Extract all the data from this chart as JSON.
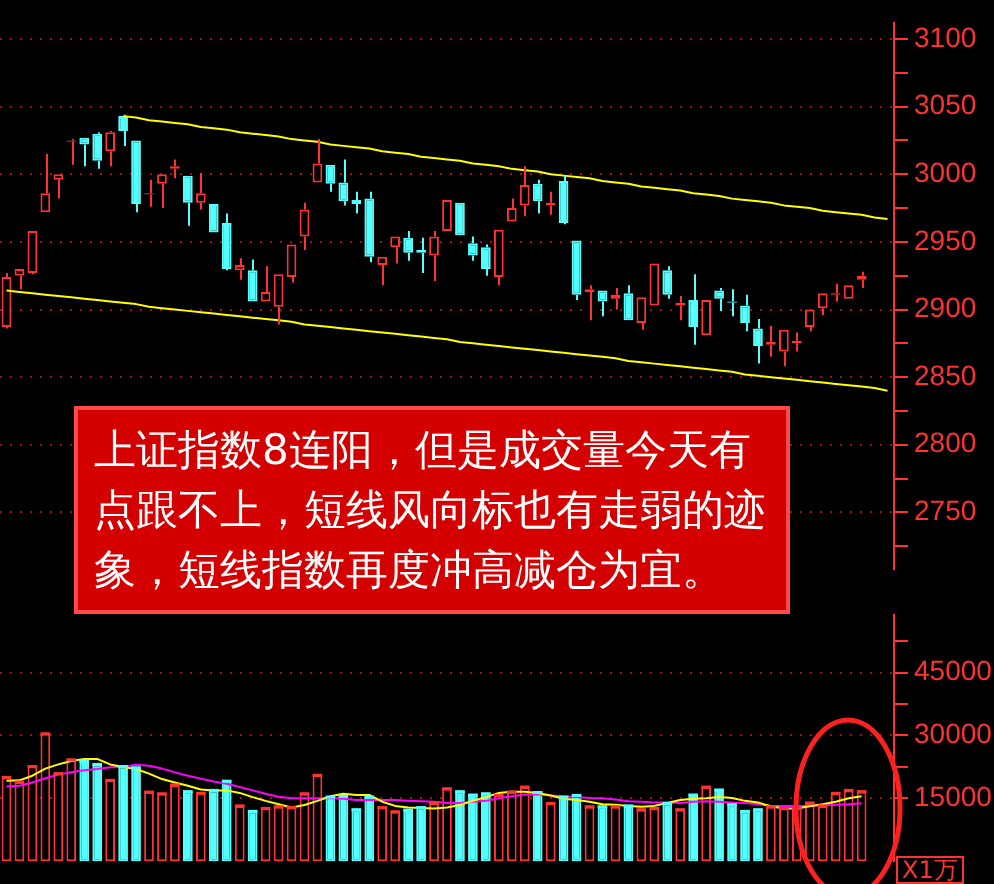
{
  "chart_data": [
    {
      "type": "candlestick",
      "categories": [
        null,
        null,
        null,
        null,
        null,
        null,
        null,
        null,
        null,
        null,
        null,
        null,
        null,
        null,
        null,
        null,
        null,
        null,
        null,
        null,
        null,
        null,
        null,
        null,
        null,
        null,
        null,
        null,
        null,
        null,
        null,
        null,
        null,
        null,
        null,
        null,
        null,
        null,
        null,
        null,
        null,
        null,
        null,
        null,
        null,
        null,
        null,
        null,
        null,
        null,
        null,
        null,
        null,
        null,
        null,
        null,
        null,
        null,
        null,
        null,
        null,
        null,
        null,
        null,
        null,
        null,
        null,
        null,
        null
      ],
      "ohlc": [
        [
          2887,
          2927,
          2886,
          2924
        ],
        [
          2925,
          2930,
          2915,
          2930
        ],
        [
          2927,
          2958,
          2926,
          2958
        ],
        [
          2972,
          3015,
          2972,
          2986
        ],
        [
          2996,
          3000,
          2982,
          3000
        ],
        [
          3024,
          3026,
          3007,
          3025
        ],
        [
          3027,
          3027,
          3006,
          3022
        ],
        [
          3030,
          3031,
          3004,
          3010
        ],
        [
          3017,
          3032,
          3006,
          3031
        ],
        [
          3043,
          3044,
          3021,
          3032
        ],
        [
          3025,
          3025,
          2972,
          2978
        ],
        [
          2985,
          2996,
          2976,
          2986
        ],
        [
          2993,
          3000,
          2975,
          3000
        ],
        [
          3004,
          3011,
          2997,
          3006
        ],
        [
          2999,
          2999,
          2962,
          2979
        ],
        [
          2979,
          3001,
          2974,
          2986
        ],
        [
          2978,
          2978,
          2957,
          2957
        ],
        [
          2964,
          2971,
          2929,
          2930
        ],
        [
          2929,
          2938,
          2922,
          2933
        ],
        [
          2929,
          2937,
          2906,
          2906
        ],
        [
          2906,
          2932,
          2906,
          2913
        ],
        [
          2902,
          2926,
          2889,
          2926
        ],
        [
          2924,
          2948,
          2920,
          2948
        ],
        [
          2954,
          2979,
          2944,
          2974
        ],
        [
          2994,
          3026,
          2994,
          3008
        ],
        [
          3007,
          3007,
          2987,
          2993
        ],
        [
          2994,
          3011,
          2977,
          2980
        ],
        [
          2981,
          2987,
          2971,
          2978
        ],
        [
          2982,
          2987,
          2935,
          2939
        ],
        [
          2933,
          2939,
          2918,
          2939
        ],
        [
          2946,
          2954,
          2934,
          2954
        ],
        [
          2953,
          2958,
          2936,
          2942
        ],
        [
          2944,
          2953,
          2927,
          2942
        ],
        [
          2940,
          2958,
          2921,
          2954
        ],
        [
          2958,
          2981,
          2958,
          2981
        ],
        [
          2979,
          2979,
          2955,
          2955
        ],
        [
          2949,
          2954,
          2936,
          2940
        ],
        [
          2946,
          2948,
          2925,
          2930
        ],
        [
          2924,
          2959,
          2918,
          2959
        ],
        [
          2965,
          2982,
          2965,
          2975
        ],
        [
          2977,
          3006,
          2969,
          2992
        ],
        [
          2993,
          2996,
          2971,
          2980
        ],
        [
          2977,
          2987,
          2970,
          2979
        ],
        [
          2995,
          2999,
          2963,
          2964
        ],
        [
          2951,
          2951,
          2907,
          2911
        ],
        [
          2913,
          2918,
          2892,
          2915
        ],
        [
          2914,
          2914,
          2895,
          2906
        ],
        [
          2908,
          2916,
          2900,
          2911
        ],
        [
          2912,
          2918,
          2892,
          2892
        ],
        [
          2890,
          2909,
          2885,
          2909
        ],
        [
          2903,
          2934,
          2903,
          2934
        ],
        [
          2929,
          2932,
          2908,
          2911
        ],
        [
          2903,
          2910,
          2892,
          2905
        ],
        [
          2907,
          2926,
          2874,
          2887
        ],
        [
          2881,
          2907,
          2881,
          2907
        ],
        [
          2914,
          2916,
          2899,
          2908
        ],
        [
          2906,
          2915,
          2895,
          2905
        ],
        [
          2903,
          2911,
          2884,
          2890
        ],
        [
          2886,
          2893,
          2860,
          2873
        ],
        [
          2874,
          2888,
          2865,
          2876
        ],
        [
          2869,
          2885,
          2858,
          2885
        ],
        [
          2875,
          2883,
          2869,
          2877
        ],
        [
          2887,
          2900,
          2884,
          2900
        ],
        [
          2901,
          2912,
          2896,
          2912
        ],
        [
          2911,
          2919,
          2906,
          2912
        ],
        [
          2908,
          2918,
          2908,
          2918
        ],
        [
          2922,
          2928,
          2916,
          2925
        ],
        null,
        null
      ],
      "colors": [
        "#ff3232",
        "#ff3232",
        "#ff3232",
        "#ff3232",
        "#ff3232",
        "#ff3232",
        "#54ffff",
        "#54ffff",
        "#ff3232",
        "#54ffff",
        "#54ffff",
        "#ff3232",
        "#ff3232",
        "#ff3232",
        "#54ffff",
        "#ff3232",
        "#54ffff",
        "#54ffff",
        "#ff3232",
        "#54ffff",
        "#ff3232",
        "#ff3232",
        "#ff3232",
        "#ff3232",
        "#ff3232",
        "#54ffff",
        "#54ffff",
        "#54ffff",
        "#54ffff",
        "#ff3232",
        "#ff3232",
        "#54ffff",
        "#54ffff",
        "#ff3232",
        "#ff3232",
        "#54ffff",
        "#54ffff",
        "#54ffff",
        "#ff3232",
        "#ff3232",
        "#ff3232",
        "#54ffff",
        "#ff3232",
        "#54ffff",
        "#54ffff",
        "#ff3232",
        "#54ffff",
        "#ff3232",
        "#54ffff",
        "#ff3232",
        "#ff3232",
        "#54ffff",
        "#ff3232",
        "#54ffff",
        "#ff3232",
        "#54ffff",
        "#54ffff",
        "#54ffff",
        "#54ffff",
        "#ff3232",
        "#ff3232",
        "#ff3232",
        "#ff3232",
        "#ff3232",
        "#ff3232",
        "#ff3232",
        "#ff3232",
        null,
        null
      ],
      "series": [
        {
          "type": "line",
          "color": "#ffff00",
          "values": [
            null,
            null,
            null,
            null,
            null,
            null,
            null,
            null,
            null,
            3043,
            3042,
            3040,
            3039,
            3038,
            3037,
            3035,
            3034,
            3033,
            3031,
            3030,
            3029,
            3028,
            3026,
            3025,
            3024,
            3022,
            3021,
            3020,
            3019,
            3017,
            3016,
            3015,
            3013,
            3012,
            3011,
            3010,
            3008,
            3007,
            3006,
            3004,
            3003,
            3002,
            3000,
            2999,
            2998,
            2997,
            2995,
            2994,
            2993,
            2991,
            2990,
            2989,
            2988,
            2986,
            2985,
            2984,
            2982,
            2981,
            2980,
            2979,
            2977,
            2976,
            2975,
            2973,
            2972,
            2971,
            2970,
            2968,
            2967
          ]
        },
        {
          "type": "line",
          "color": "#ffff00",
          "values": [
            2914,
            2913,
            2912,
            2911,
            2910,
            2909,
            2908,
            2907,
            2906,
            2905,
            2904,
            2902,
            2901,
            2900,
            2899,
            2898,
            2897,
            2896,
            2895,
            2894,
            2893,
            2892,
            2891,
            2889,
            2888,
            2887,
            2886,
            2885,
            2884,
            2883,
            2882,
            2881,
            2880,
            2879,
            2878,
            2876,
            2875,
            2874,
            2873,
            2872,
            2871,
            2870,
            2869,
            2868,
            2867,
            2866,
            2865,
            2864,
            2862,
            2861,
            2860,
            2859,
            2858,
            2857,
            2856,
            2855,
            2854,
            2852,
            2851,
            2850,
            2849,
            2848,
            2847,
            2846,
            2845,
            2844,
            2843,
            2842,
            2840
          ]
        }
      ],
      "ylim": [
        2708,
        3112
      ],
      "yticks": [
        {
          "value": 2725,
          "label": null
        },
        2750,
        {
          "value": 2775,
          "label": null
        },
        2800,
        {
          "value": 2825,
          "label": null
        },
        2850,
        {
          "value": 2875,
          "label": null
        },
        2900,
        {
          "value": 2925,
          "label": null
        },
        2950,
        {
          "value": 2975,
          "label": null
        },
        3000,
        {
          "value": 3025,
          "label": null
        },
        3050,
        {
          "value": 3075,
          "label": null
        },
        3100
      ],
      "grid": "y",
      "tick_labels": "y",
      "annotations": [
        "上证指数8连阳，但是成交量今天有点跟不上，短线风向标也有走弱的迹象，短线指数再度冲高减仓为宜。"
      ]
    },
    {
      "type": "bar",
      "categories": [
        null,
        null,
        null,
        null,
        null,
        null,
        null,
        null,
        null,
        null,
        null,
        null,
        null,
        null,
        null,
        null,
        null,
        null,
        null,
        null,
        null,
        null,
        null,
        null,
        null,
        null,
        null,
        null,
        null,
        null,
        null,
        null,
        null,
        null,
        null,
        null,
        null,
        null,
        null,
        null,
        null,
        null,
        null,
        null,
        null,
        null,
        null,
        null,
        null,
        null,
        null,
        null,
        null,
        null,
        null,
        null,
        null,
        null,
        null,
        null,
        null,
        null,
        null,
        null,
        null,
        null,
        null,
        null,
        null
      ],
      "series": [
        {
          "colors": [
            "#ff3232",
            "#ff3232",
            "#ff3232",
            "#ff3232",
            "#ff3232",
            "#ff3232",
            "#54ffff",
            "#54ffff",
            "#ff3232",
            "#54ffff",
            "#54ffff",
            "#ff3232",
            "#ff3232",
            "#ff3232",
            "#54ffff",
            "#ff3232",
            "#54ffff",
            "#54ffff",
            "#ff3232",
            "#54ffff",
            "#ff3232",
            "#ff3232",
            "#ff3232",
            "#ff3232",
            "#ff3232",
            "#54ffff",
            "#54ffff",
            "#54ffff",
            "#54ffff",
            "#ff3232",
            "#ff3232",
            "#54ffff",
            "#54ffff",
            "#ff3232",
            "#ff3232",
            "#54ffff",
            "#54ffff",
            "#54ffff",
            "#ff3232",
            "#ff3232",
            "#ff3232",
            "#54ffff",
            "#ff3232",
            "#54ffff",
            "#54ffff",
            "#ff3232",
            "#54ffff",
            "#ff3232",
            "#54ffff",
            "#ff3232",
            "#ff3232",
            "#54ffff",
            "#ff3232",
            "#54ffff",
            "#ff3232",
            "#54ffff",
            "#54ffff",
            "#54ffff",
            "#54ffff",
            "#ff3232",
            "#ff3232",
            "#ff3232",
            "#ff3232",
            "#ff3232",
            "#ff3232",
            "#ff3232",
            "#ff3232",
            null,
            null
          ],
          "values": [
            20000,
            18900,
            22600,
            30400,
            20900,
            24200,
            23900,
            23100,
            19300,
            22600,
            22300,
            16500,
            16100,
            18200,
            16600,
            16200,
            16900,
            19100,
            13200,
            11900,
            12600,
            13000,
            12800,
            16100,
            20500,
            15300,
            15500,
            12300,
            15300,
            12800,
            11800,
            12200,
            12800,
            13900,
            17300,
            16600,
            15800,
            16100,
            15700,
            16500,
            17700,
            16400,
            13800,
            15300,
            15700,
            13000,
            13000,
            13000,
            13200,
            12300,
            12600,
            13800,
            12300,
            15800,
            17700,
            17000,
            13500,
            11900,
            12300,
            13000,
            12600,
            12600,
            13900,
            13200,
            16200,
            16900,
            16600,
            null,
            null
          ]
        },
        {
          "type": "line",
          "color": "#ffff00",
          "values": [
            19200,
            19300,
            20400,
            22100,
            23100,
            23900,
            24400,
            24400,
            23100,
            22500,
            22000,
            20900,
            19600,
            18800,
            18000,
            17100,
            16900,
            16900,
            16300,
            15300,
            14400,
            13600,
            12800,
            13400,
            14400,
            15500,
            16100,
            15800,
            15800,
            14200,
            13200,
            12800,
            12700,
            12600,
            12800,
            13400,
            14400,
            15300,
            16300,
            16600,
            16600,
            16300,
            15700,
            14900,
            14600,
            14200,
            13600,
            13500,
            13200,
            13000,
            13200,
            13900,
            14600,
            14900,
            15000,
            15300,
            15100,
            14400,
            14000,
            13100,
            12600,
            12600,
            13100,
            13600,
            14200,
            15000,
            15500,
            null,
            null
          ]
        },
        {
          "type": "line",
          "color": "#ff00ff",
          "values": [
            17800,
            18000,
            18800,
            19800,
            20700,
            21200,
            21700,
            22000,
            22400,
            22500,
            23000,
            22800,
            22100,
            21200,
            20400,
            19700,
            19000,
            18500,
            17700,
            16900,
            16100,
            15400,
            15000,
            15000,
            15000,
            15100,
            14900,
            14600,
            14600,
            14600,
            14600,
            14400,
            14300,
            14200,
            13900,
            13900,
            14200,
            14400,
            15000,
            15500,
            15900,
            15900,
            15700,
            15500,
            15300,
            15100,
            15000,
            14700,
            14300,
            14200,
            14000,
            14000,
            13900,
            14200,
            14300,
            14200,
            14000,
            13900,
            13600,
            13200,
            13200,
            13200,
            13200,
            13400,
            13500,
            13600,
            13800,
            null,
            null
          ]
        }
      ],
      "ylim": [
        0,
        58800
      ],
      "yticks": [
        15000,
        {
          "value": 22500,
          "label": null
        },
        30000,
        {
          "value": 37500,
          "label": null
        },
        45000,
        {
          "value": 52500,
          "label": null
        }
      ],
      "grid": "y",
      "tick_labels": "y",
      "ylabel": "X1万"
    }
  ]
}
